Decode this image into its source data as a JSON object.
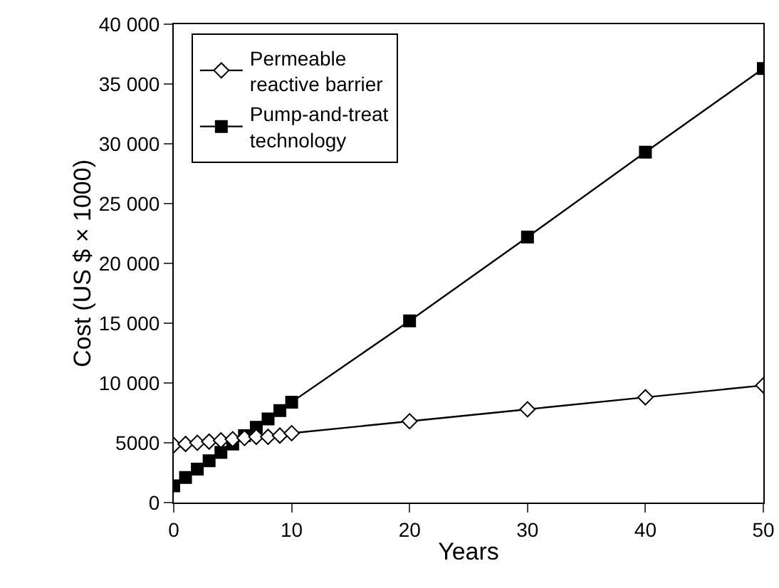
{
  "chart_data": {
    "type": "line",
    "xlabel": "Years",
    "ylabel": "Cost (US $ × 1000)",
    "x": [
      0,
      1,
      2,
      3,
      4,
      5,
      6,
      7,
      8,
      9,
      10,
      20,
      30,
      40,
      50
    ],
    "series": [
      {
        "name": "Permeable\nreactive barrier",
        "color": "#000000",
        "marker": "diamond",
        "values": [
          4800,
          4900,
          5000,
          5100,
          5200,
          5300,
          5400,
          5500,
          5500,
          5600,
          5800,
          6800,
          7800,
          8800,
          9800
        ]
      },
      {
        "name": "Pump-and-treat\ntechnology",
        "color": "#000000",
        "marker": "square",
        "values": [
          1400,
          2100,
          2800,
          3500,
          4200,
          4900,
          5600,
          6300,
          7000,
          7700,
          8400,
          15200,
          22200,
          29300,
          36300
        ]
      }
    ],
    "xlim": [
      0,
      50
    ],
    "xticks": [
      0,
      10,
      20,
      30,
      40,
      50
    ],
    "ylim": [
      0,
      40000
    ],
    "yticks": [
      {
        "value": 0,
        "label": "0"
      },
      {
        "value": 5000,
        "label": "5000"
      },
      {
        "value": 10000,
        "label": "10 000"
      },
      {
        "value": 15000,
        "label": "15 000"
      },
      {
        "value": 20000,
        "label": "20 000"
      },
      {
        "value": 25000,
        "label": "25 000"
      },
      {
        "value": 30000,
        "label": "30 000"
      },
      {
        "value": 35000,
        "label": "35 000"
      },
      {
        "value": 40000,
        "label": "40 000"
      }
    ],
    "grid": false,
    "legend": "top left",
    "line_style": "solid"
  }
}
